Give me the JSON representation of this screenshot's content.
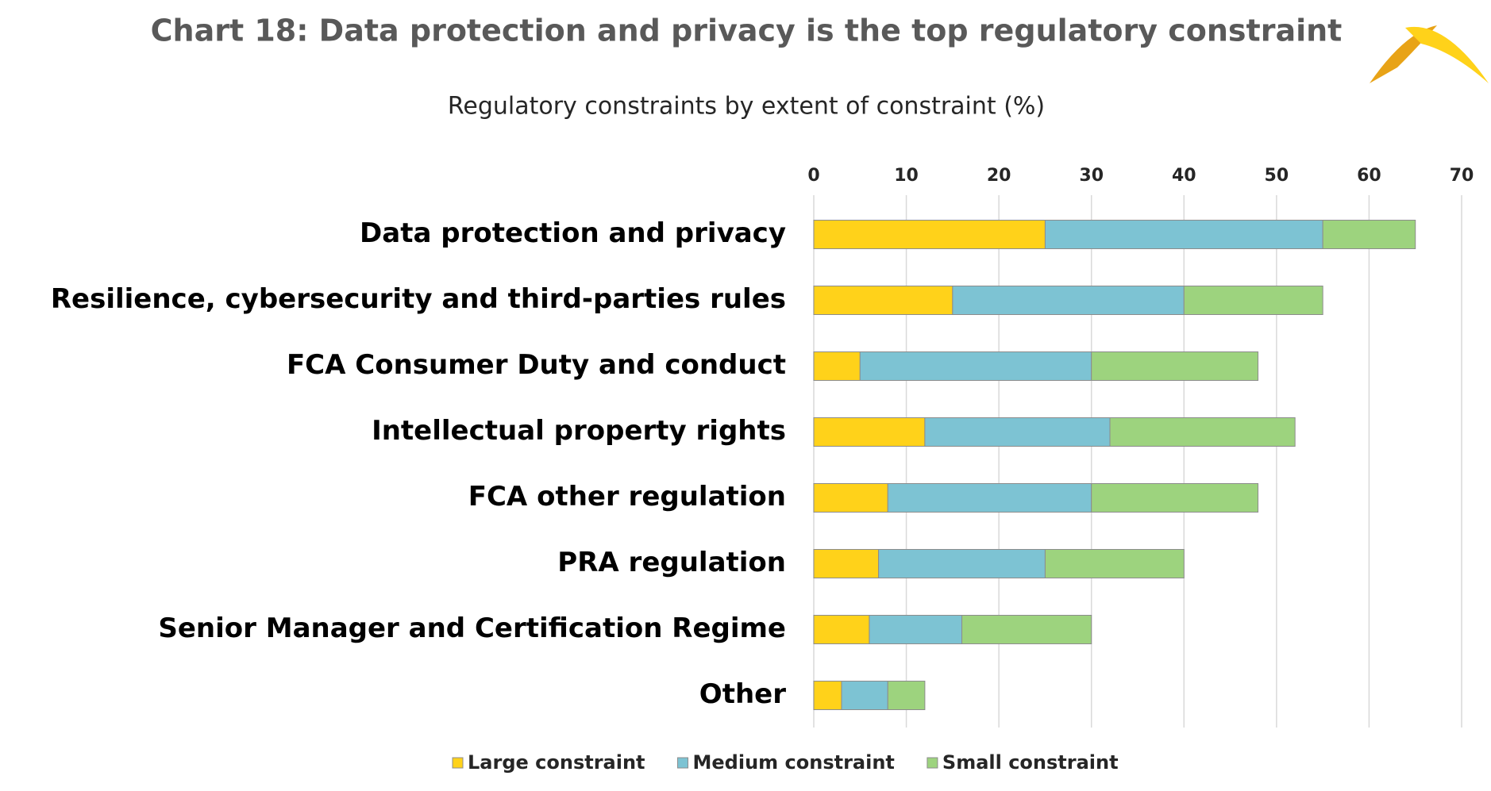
{
  "chart_data": {
    "type": "stacked-bar-horizontal",
    "title": "Chart 18: Data protection and privacy is the top regulatory constraint",
    "subtitle": "Regulatory constraints by extent of constraint (%)",
    "categories": [
      "Data protection and privacy",
      "Resilience, cybersecurity and third-parties rules",
      "FCA Consumer Duty and conduct",
      "Intellectual property rights",
      "FCA other regulation",
      "PRA regulation",
      "Senior Manager and Certification Regime",
      "Other"
    ],
    "series": [
      {
        "name": "Large constraint",
        "color": "#FFD21A",
        "values": [
          25,
          15,
          5,
          12,
          8,
          7,
          6,
          3
        ]
      },
      {
        "name": "Medium constraint",
        "color": "#7DC3D3",
        "values": [
          30,
          25,
          25,
          20,
          22,
          18,
          10,
          5
        ]
      },
      {
        "name": "Small constraint",
        "color": "#9DD37E",
        "values": [
          10,
          15,
          18,
          20,
          18,
          15,
          14,
          4
        ]
      }
    ],
    "xlim": [
      0,
      70
    ],
    "xticks": [
      0,
      10,
      20,
      30,
      40,
      50,
      60,
      70
    ],
    "grid": true,
    "legend": "bottom"
  }
}
